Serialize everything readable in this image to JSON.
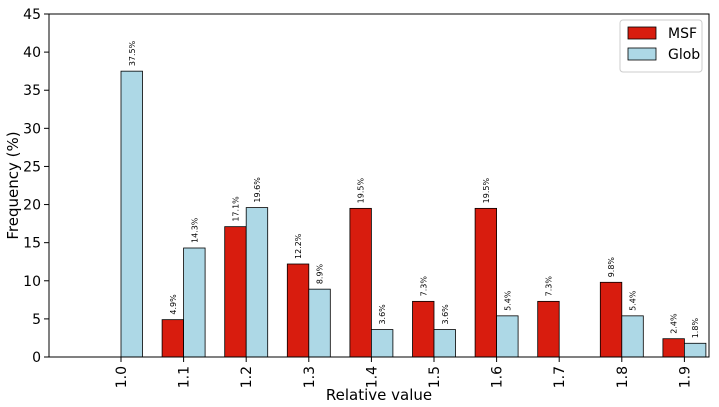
{
  "chart_data": {
    "type": "bar",
    "categories": [
      "1.0",
      "1.1",
      "1.2",
      "1.3",
      "1.4",
      "1.5",
      "1.6",
      "1.7",
      "1.8",
      "1.9"
    ],
    "series": [
      {
        "name": "MSF",
        "color": "#d81c0e",
        "values": [
          0,
          4.9,
          17.1,
          12.2,
          19.5,
          7.3,
          19.5,
          7.3,
          9.8,
          2.4
        ],
        "labels": [
          "",
          "4.9%",
          "17.1%",
          "12.2%",
          "19.5%",
          "7.3%",
          "19.5%",
          "7.3%",
          "9.8%",
          "2.4%"
        ]
      },
      {
        "name": "Glob",
        "color": "#add8e6",
        "values": [
          37.5,
          14.3,
          19.6,
          8.9,
          3.6,
          3.6,
          5.4,
          0,
          5.4,
          1.8
        ],
        "labels": [
          "37.5%",
          "14.3%",
          "19.6%",
          "8.9%",
          "3.6%",
          "3.6%",
          "5.4%",
          "",
          "5.4%",
          "1.8%"
        ]
      }
    ],
    "xlabel": "Relative value",
    "ylabel": "Frequency (%)",
    "ylim": [
      0,
      45
    ],
    "yticks": [
      "0",
      "5",
      "10",
      "15",
      "20",
      "25",
      "30",
      "35",
      "40",
      "45"
    ],
    "grid": false,
    "legend": "top-right"
  }
}
